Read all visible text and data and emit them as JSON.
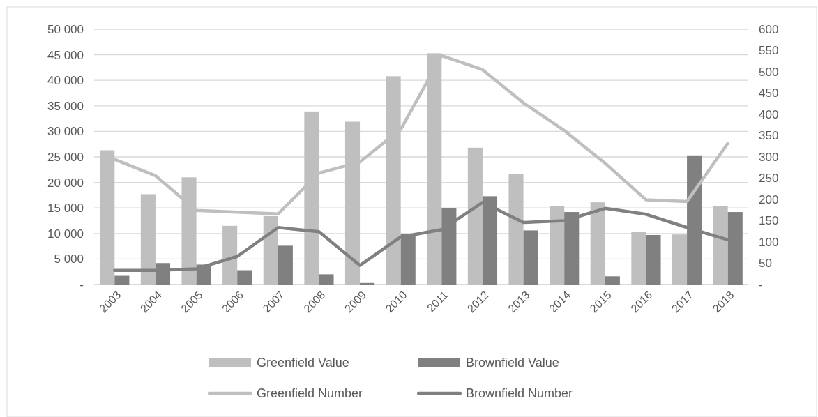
{
  "chart_data": {
    "type": "bar",
    "categories": [
      "2003",
      "2004",
      "2005",
      "2006",
      "2007",
      "2008",
      "2009",
      "2010",
      "2011",
      "2012",
      "2013",
      "2014",
      "2015",
      "2016",
      "2017",
      "2018"
    ],
    "series": [
      {
        "name": "Greenfield Value",
        "color": "#bfbfbf",
        "values": [
          26300,
          17700,
          21000,
          11500,
          13400,
          33900,
          31900,
          40800,
          45300,
          26800,
          21700,
          15300,
          16100,
          10300,
          9800,
          15300
        ]
      },
      {
        "name": "Brownfield Value",
        "color": "#808080",
        "values": [
          1700,
          4200,
          3900,
          2800,
          7600,
          2000,
          300,
          9900,
          15000,
          17300,
          10600,
          14200,
          1600,
          9700,
          25300,
          14200
        ]
      },
      {
        "name": "Greenfield Number",
        "type": "line",
        "axis": "y2",
        "color": "#bfbfbf",
        "values": [
          294,
          256,
          174,
          170,
          166,
          262,
          288,
          365,
          538,
          505,
          427,
          362,
          285,
          199,
          195,
          332
        ]
      },
      {
        "name": "Brownfield Number",
        "type": "line",
        "axis": "y2",
        "color": "#808080",
        "values": [
          33,
          33,
          37,
          66,
          134,
          124,
          45,
          112,
          129,
          193,
          146,
          150,
          179,
          165,
          134,
          105
        ]
      }
    ],
    "ylim": [
      0,
      50000
    ],
    "yticks": [
      {
        "value": 0,
        "label": "-"
      },
      {
        "value": 5000,
        "label": "5 000"
      },
      {
        "value": 10000,
        "label": "10 000"
      },
      {
        "value": 15000,
        "label": "15 000"
      },
      {
        "value": 20000,
        "label": "20 000"
      },
      {
        "value": 25000,
        "label": "25 000"
      },
      {
        "value": 30000,
        "label": "30 000"
      },
      {
        "value": 35000,
        "label": "35 000"
      },
      {
        "value": 40000,
        "label": "40 000"
      },
      {
        "value": 45000,
        "label": "45 000"
      },
      {
        "value": 50000,
        "label": "50 000"
      }
    ],
    "y2lim": [
      0,
      600
    ],
    "y2ticks": [
      {
        "value": 0,
        "label": "-"
      },
      50,
      100,
      150,
      200,
      250,
      300,
      350,
      400,
      450,
      500,
      550,
      600
    ],
    "grid": "y",
    "legend": "bottom"
  }
}
